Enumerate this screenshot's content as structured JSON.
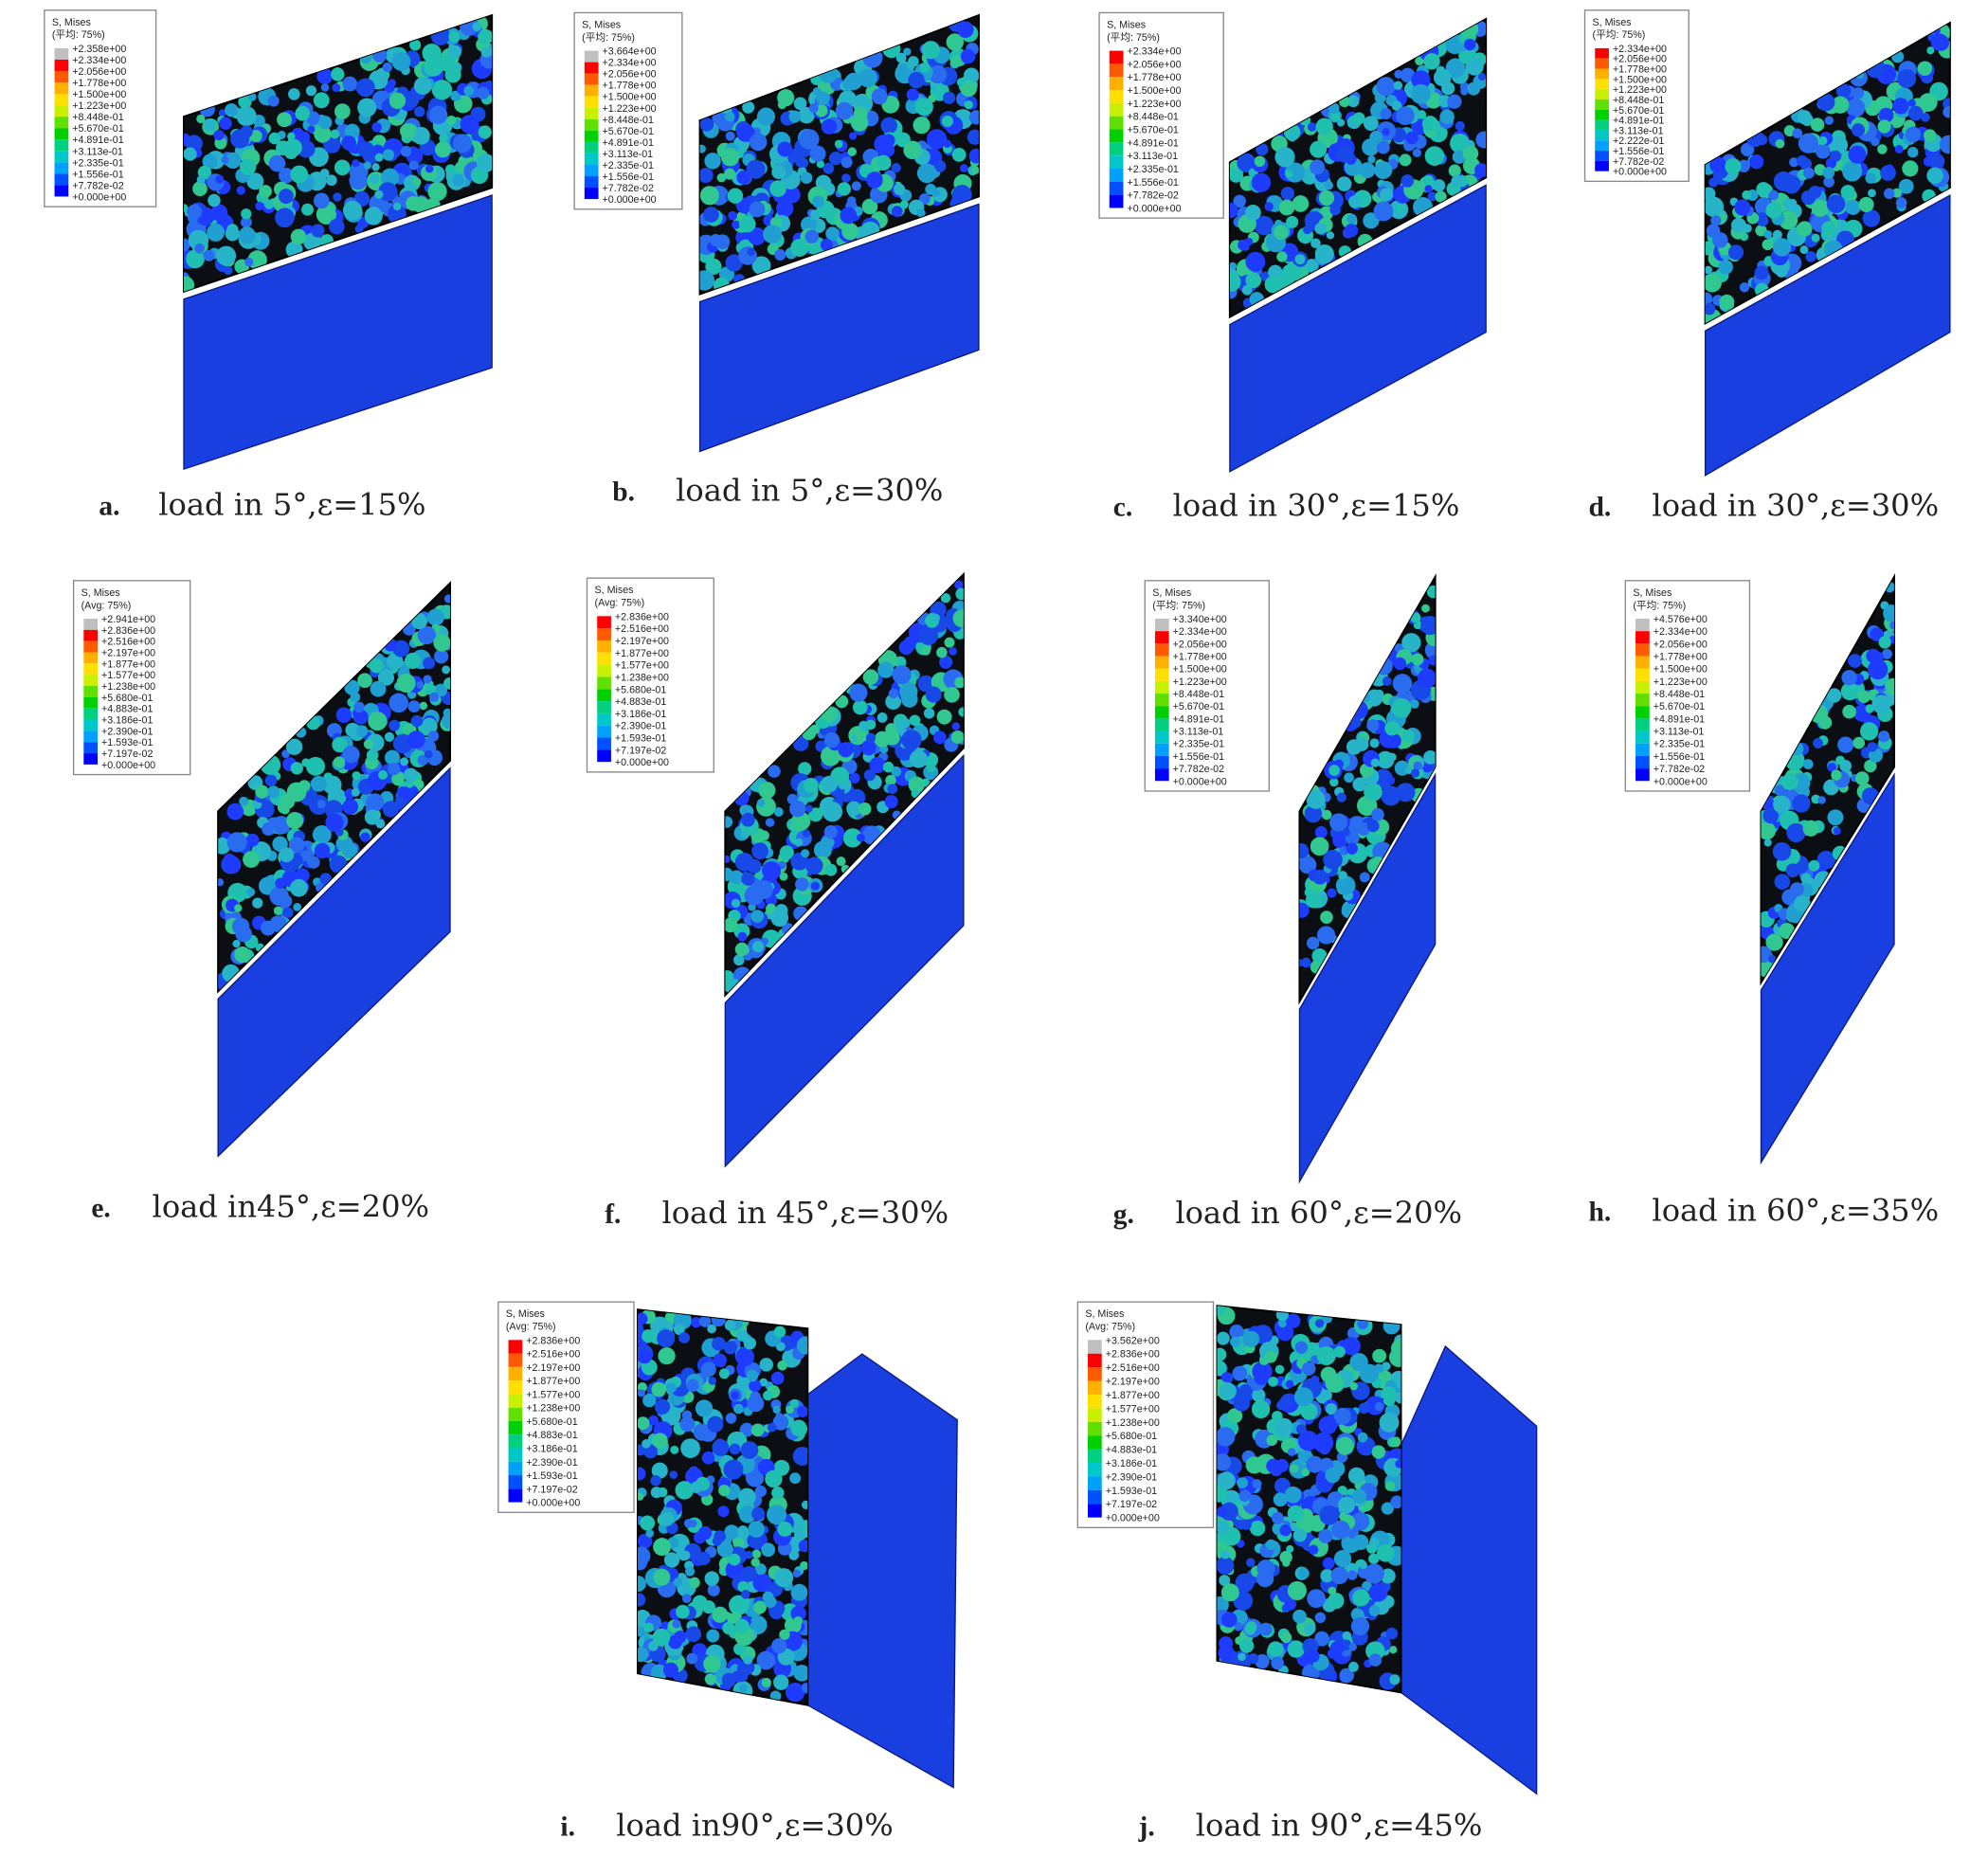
{
  "panels": [
    {
      "label": "a.",
      "caption": "load in 5°,ε=15%",
      "legend": {
        "title": "S, Mises",
        "subtitle": "(平均: 75%)",
        "values": [
          "+2.358e+00",
          "+2.334e+00",
          "+2.056e+00",
          "+1.778e+00",
          "+1.500e+00",
          "+1.223e+00",
          "+8.448e-01",
          "+5.670e-01",
          "+4.891e-01",
          "+3.113e-01",
          "+2.335e-01",
          "+1.556e-01",
          "+7.782e-02",
          "+0.000e+00"
        ]
      }
    },
    {
      "label": "b.",
      "caption": "load in 5°,ε=30%",
      "legend": {
        "title": "S, Mises",
        "subtitle": "(平均: 75%)",
        "values": [
          "+3.664e+00",
          "+2.334e+00",
          "+2.056e+00",
          "+1.778e+00",
          "+1.500e+00",
          "+1.223e+00",
          "+8.448e-01",
          "+5.670e-01",
          "+4.891e-01",
          "+3.113e-01",
          "+2.335e-01",
          "+1.556e-01",
          "+7.782e-02",
          "+0.000e+00"
        ]
      }
    },
    {
      "label": "c.",
      "caption": "load in 30°,ε=15%",
      "legend": {
        "title": "S, Mises",
        "subtitle": "(平均: 75%)",
        "values": [
          "+2.334e+00",
          "+2.056e+00",
          "+1.778e+00",
          "+1.500e+00",
          "+1.223e+00",
          "+8.448e-01",
          "+5.670e-01",
          "+4.891e-01",
          "+3.113e-01",
          "+2.335e-01",
          "+1.556e-01",
          "+7.782e-02",
          "+0.000e+00"
        ]
      }
    },
    {
      "label": "d.",
      "caption": "load in 30°,ε=30%",
      "legend": {
        "title": "S, Mises",
        "subtitle": "(平均: 75%)",
        "values": [
          "+2.334e+00",
          "+2.056e+00",
          "+1.778e+00",
          "+1.500e+00",
          "+1.223e+00",
          "+8.448e-01",
          "+5.670e-01",
          "+4.891e-01",
          "+3.113e-01",
          "+2.222e-01",
          "+1.556e-01",
          "+7.782e-02",
          "+0.000e+00"
        ]
      }
    },
    {
      "label": "e.",
      "caption": "load in45°,ε=20%",
      "legend": {
        "title": "S, Mises",
        "subtitle": "(Avg: 75%)",
        "values": [
          "+2.941e+00",
          "+2.836e+00",
          "+2.516e+00",
          "+2.197e+00",
          "+1.877e+00",
          "+1.577e+00",
          "+1.238e+00",
          "+5.680e-01",
          "+4.883e-01",
          "+3.186e-01",
          "+2.390e-01",
          "+1.593e-01",
          "+7.197e-02",
          "+0.000e+00"
        ]
      }
    },
    {
      "label": "f.",
      "caption": "load in 45°,ε=30%",
      "legend": {
        "title": "S, Mises",
        "subtitle": "(Avg: 75%)",
        "values": [
          "+2.836e+00",
          "+2.516e+00",
          "+2.197e+00",
          "+1.877e+00",
          "+1.577e+00",
          "+1.238e+00",
          "+5.680e-01",
          "+4.883e-01",
          "+3.186e-01",
          "+2.390e-01",
          "+1.593e-01",
          "+7.197e-02",
          "+0.000e+00"
        ]
      }
    },
    {
      "label": "g.",
      "caption": "load in 60°,ε=20%",
      "legend": {
        "title": "S, Mises",
        "subtitle": "(平均: 75%)",
        "values": [
          "+3.340e+00",
          "+2.334e+00",
          "+2.056e+00",
          "+1.778e+00",
          "+1.500e+00",
          "+1.223e+00",
          "+8.448e-01",
          "+5.670e-01",
          "+4.891e-01",
          "+3.113e-01",
          "+2.335e-01",
          "+1.556e-01",
          "+7.782e-02",
          "+0.000e+00"
        ]
      }
    },
    {
      "label": "h.",
      "caption": "load in 60°,ε=35%",
      "legend": {
        "title": "S, Mises",
        "subtitle": "(平均: 75%)",
        "values": [
          "+4.576e+00",
          "+2.334e+00",
          "+2.056e+00",
          "+1.778e+00",
          "+1.500e+00",
          "+1.223e+00",
          "+8.448e-01",
          "+5.670e-01",
          "+4.891e-01",
          "+3.113e-01",
          "+2.335e-01",
          "+1.556e-01",
          "+7.782e-02",
          "+0.000e+00"
        ]
      }
    },
    {
      "label": "i.",
      "caption": "load in90°,ε=30%",
      "legend": {
        "title": "S, Mises",
        "subtitle": "(Avg: 75%)",
        "values": [
          "+2.836e+00",
          "+2.516e+00",
          "+2.197e+00",
          "+1.877e+00",
          "+1.577e+00",
          "+1.238e+00",
          "+5.680e-01",
          "+4.883e-01",
          "+3.186e-01",
          "+2.390e-01",
          "+1.593e-01",
          "+7.197e-02",
          "+0.000e+00"
        ]
      }
    },
    {
      "label": "j.",
      "caption": "load in 90°,ε=45%",
      "legend": {
        "title": "S, Mises",
        "subtitle": "(Avg: 75%)",
        "values": [
          "+3.562e+00",
          "+2.836e+00",
          "+2.516e+00",
          "+2.197e+00",
          "+1.877e+00",
          "+1.577e+00",
          "+1.238e+00",
          "+5.680e-01",
          "+4.883e-01",
          "+3.186e-01",
          "+2.390e-01",
          "+1.593e-01",
          "+7.197e-02",
          "+0.000e+00"
        ]
      }
    }
  ]
}
